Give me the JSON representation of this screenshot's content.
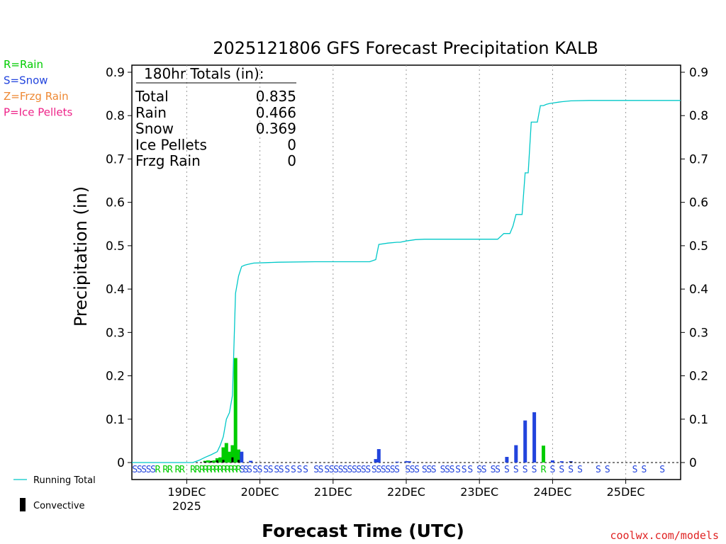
{
  "chart_data": {
    "type": "bar",
    "title": "2025121806 GFS Forecast Precipitation KALB",
    "xlabel": "Forecast Time (UTC)",
    "ylabel": "Precipitation (in)",
    "ylim": [
      0,
      0.92
    ],
    "xlim_hours": [
      0,
      180
    ],
    "y_ticks": [
      "0",
      "0.1",
      "0.2",
      "0.3",
      "0.4",
      "0.5",
      "0.6",
      "0.7",
      "0.8",
      "0.9"
    ],
    "x_ticks": [
      {
        "hour": 18,
        "label": "19DEC",
        "sub": "2025"
      },
      {
        "hour": 42,
        "label": "20DEC"
      },
      {
        "hour": 66,
        "label": "21DEC"
      },
      {
        "hour": 90,
        "label": "22DEC"
      },
      {
        "hour": 114,
        "label": "23DEC"
      },
      {
        "hour": 138,
        "label": "24DEC"
      },
      {
        "hour": 162,
        "label": "25DEC"
      }
    ],
    "totals": {
      "header": "180hr Totals (in):",
      "rows": [
        {
          "label": "Total",
          "value": "0.835"
        },
        {
          "label": "Rain",
          "value": "0.466"
        },
        {
          "label": "Snow",
          "value": "0.369"
        },
        {
          "label": "Ice Pellets",
          "value": "0"
        },
        {
          "label": "Frzg Rain",
          "value": "0"
        }
      ]
    },
    "type_legend": [
      {
        "label": "R=Rain",
        "color": "#00cc00"
      },
      {
        "label": "S=Snow",
        "color": "#2244dd"
      },
      {
        "label": "Z=Frzg Rain",
        "color": "#ee8833"
      },
      {
        "label": "P=Ice Pellets",
        "color": "#ee2288"
      }
    ],
    "series_legend": [
      {
        "label": "Running Total",
        "color": "#00c8c8"
      },
      {
        "label": "Convective",
        "color": "#000000"
      }
    ],
    "precip_bars": [
      {
        "hour": 24.0,
        "value": 0.004,
        "type": "rain"
      },
      {
        "hour": 25.0,
        "value": 0.005,
        "type": "rain"
      },
      {
        "hour": 26.0,
        "value": 0.004,
        "type": "rain"
      },
      {
        "hour": 27.0,
        "value": 0.005,
        "type": "rain"
      },
      {
        "hour": 28.0,
        "value": 0.01,
        "type": "rain"
      },
      {
        "hour": 29.0,
        "value": 0.012,
        "type": "rain"
      },
      {
        "hour": 30.0,
        "value": 0.035,
        "type": "rain"
      },
      {
        "hour": 31.0,
        "value": 0.045,
        "type": "rain"
      },
      {
        "hour": 32.0,
        "value": 0.025,
        "type": "rain"
      },
      {
        "hour": 33.0,
        "value": 0.04,
        "type": "rain"
      },
      {
        "hour": 34.0,
        "value": 0.241,
        "type": "rain"
      },
      {
        "hour": 35.0,
        "value": 0.03,
        "type": "rain"
      },
      {
        "hour": 36.0,
        "value": 0.025,
        "type": "snow"
      },
      {
        "hour": 39.0,
        "value": 0.004,
        "type": "snow"
      },
      {
        "hour": 80.0,
        "value": 0.008,
        "type": "snow"
      },
      {
        "hour": 81.0,
        "value": 0.031,
        "type": "snow"
      },
      {
        "hour": 87.0,
        "value": 0.002,
        "type": "snow"
      },
      {
        "hour": 90.0,
        "value": 0.003,
        "type": "snow"
      },
      {
        "hour": 91.0,
        "value": 0.003,
        "type": "snow"
      },
      {
        "hour": 123.0,
        "value": 0.013,
        "type": "snow"
      },
      {
        "hour": 126.0,
        "value": 0.04,
        "type": "snow"
      },
      {
        "hour": 129.0,
        "value": 0.097,
        "type": "snow"
      },
      {
        "hour": 132.0,
        "value": 0.116,
        "type": "snow"
      },
      {
        "hour": 135.0,
        "value": 0.039,
        "type": "rain"
      },
      {
        "hour": 138.0,
        "value": 0.005,
        "type": "snow"
      },
      {
        "hour": 141.0,
        "value": 0.003,
        "type": "snow"
      },
      {
        "hour": 144.0,
        "value": 0.003,
        "type": "snow"
      }
    ],
    "convective_bars": [
      {
        "hour": 24.0,
        "value": 0.002
      },
      {
        "hour": 26.0,
        "value": 0.003
      },
      {
        "hour": 28.0,
        "value": 0.005
      },
      {
        "hour": 30.0,
        "value": 0.006
      },
      {
        "hour": 33.0,
        "value": 0.012
      },
      {
        "hour": 35.0,
        "value": 0.006
      },
      {
        "hour": 144.0,
        "value": 0.002
      }
    ],
    "running_total": {
      "hours": [
        0,
        20,
        22,
        24,
        26,
        28,
        29,
        30,
        31,
        32,
        33,
        34,
        35,
        36,
        37,
        38,
        40,
        44,
        48,
        60,
        72,
        78,
        80,
        81,
        84,
        87,
        88,
        90,
        93,
        96,
        108,
        120,
        122,
        124,
        125,
        126,
        127,
        128,
        129,
        130,
        131,
        132,
        133,
        134,
        135,
        136,
        137,
        138,
        140,
        141,
        144,
        150,
        160,
        170,
        180
      ],
      "values": [
        0,
        0,
        0.005,
        0.012,
        0.018,
        0.025,
        0.04,
        0.06,
        0.1,
        0.115,
        0.155,
        0.39,
        0.43,
        0.452,
        0.455,
        0.457,
        0.46,
        0.461,
        0.462,
        0.463,
        0.463,
        0.463,
        0.468,
        0.503,
        0.506,
        0.508,
        0.508,
        0.511,
        0.514,
        0.515,
        0.515,
        0.515,
        0.528,
        0.528,
        0.545,
        0.572,
        0.572,
        0.572,
        0.668,
        0.668,
        0.785,
        0.785,
        0.785,
        0.823,
        0.823,
        0.826,
        0.828,
        0.829,
        0.831,
        0.832,
        0.834,
        0.835,
        0.835,
        0.835,
        0.835
      ]
    },
    "type_strip": [
      {
        "hour": 1.0,
        "code": "S"
      },
      {
        "hour": 2.5,
        "code": "S"
      },
      {
        "hour": 4.0,
        "code": "S"
      },
      {
        "hour": 5.5,
        "code": "S"
      },
      {
        "hour": 7.0,
        "code": "S"
      },
      {
        "hour": 8.5,
        "code": "R"
      },
      {
        "hour": 11.0,
        "code": "R"
      },
      {
        "hour": 12.5,
        "code": "R"
      },
      {
        "hour": 15.0,
        "code": "R"
      },
      {
        "hour": 16.5,
        "code": "R"
      },
      {
        "hour": 20.0,
        "code": "R"
      },
      {
        "hour": 21.5,
        "code": "R"
      },
      {
        "hour": 23.0,
        "code": "R"
      },
      {
        "hour": 24.2,
        "code": "R"
      },
      {
        "hour": 25.4,
        "code": "R"
      },
      {
        "hour": 26.6,
        "code": "R"
      },
      {
        "hour": 27.8,
        "code": "R"
      },
      {
        "hour": 29.0,
        "code": "R"
      },
      {
        "hour": 30.2,
        "code": "R"
      },
      {
        "hour": 31.4,
        "code": "R"
      },
      {
        "hour": 32.6,
        "code": "R"
      },
      {
        "hour": 33.8,
        "code": "R"
      },
      {
        "hour": 35.0,
        "code": "R"
      },
      {
        "hour": 36.2,
        "code": "S"
      },
      {
        "hour": 37.4,
        "code": "S"
      },
      {
        "hour": 38.6,
        "code": "S"
      },
      {
        "hour": 40.5,
        "code": "S"
      },
      {
        "hour": 42.0,
        "code": "S"
      },
      {
        "hour": 44.0,
        "code": "S"
      },
      {
        "hour": 45.5,
        "code": "S"
      },
      {
        "hour": 47.5,
        "code": "S"
      },
      {
        "hour": 49.0,
        "code": "S"
      },
      {
        "hour": 51.0,
        "code": "S"
      },
      {
        "hour": 53.0,
        "code": "S"
      },
      {
        "hour": 55.0,
        "code": "S"
      },
      {
        "hour": 57.0,
        "code": "S"
      },
      {
        "hour": 60.5,
        "code": "S"
      },
      {
        "hour": 62.0,
        "code": "S"
      },
      {
        "hour": 64.0,
        "code": "S"
      },
      {
        "hour": 65.5,
        "code": "S"
      },
      {
        "hour": 67.0,
        "code": "S"
      },
      {
        "hour": 68.5,
        "code": "S"
      },
      {
        "hour": 70.0,
        "code": "S"
      },
      {
        "hour": 71.5,
        "code": "S"
      },
      {
        "hour": 73.0,
        "code": "S"
      },
      {
        "hour": 74.5,
        "code": "S"
      },
      {
        "hour": 76.0,
        "code": "S"
      },
      {
        "hour": 77.5,
        "code": "S"
      },
      {
        "hour": 79.5,
        "code": "S"
      },
      {
        "hour": 81.0,
        "code": "S"
      },
      {
        "hour": 82.5,
        "code": "S"
      },
      {
        "hour": 84.0,
        "code": "S"
      },
      {
        "hour": 85.5,
        "code": "S"
      },
      {
        "hour": 87.0,
        "code": "S"
      },
      {
        "hour": 90.5,
        "code": "S"
      },
      {
        "hour": 92.0,
        "code": "S"
      },
      {
        "hour": 93.5,
        "code": "S"
      },
      {
        "hour": 96.0,
        "code": "S"
      },
      {
        "hour": 97.5,
        "code": "S"
      },
      {
        "hour": 99.0,
        "code": "S"
      },
      {
        "hour": 102.0,
        "code": "S"
      },
      {
        "hour": 103.5,
        "code": "S"
      },
      {
        "hour": 105.0,
        "code": "S"
      },
      {
        "hour": 107.0,
        "code": "S"
      },
      {
        "hour": 109.0,
        "code": "S"
      },
      {
        "hour": 111.0,
        "code": "S"
      },
      {
        "hour": 114.0,
        "code": "S"
      },
      {
        "hour": 115.5,
        "code": "S"
      },
      {
        "hour": 118.5,
        "code": "S"
      },
      {
        "hour": 120.0,
        "code": "S"
      },
      {
        "hour": 123.0,
        "code": "S"
      },
      {
        "hour": 126.0,
        "code": "S"
      },
      {
        "hour": 129.0,
        "code": "S"
      },
      {
        "hour": 132.0,
        "code": "S"
      },
      {
        "hour": 135.0,
        "code": "R"
      },
      {
        "hour": 138.0,
        "code": "S"
      },
      {
        "hour": 141.0,
        "code": "S"
      },
      {
        "hour": 144.0,
        "code": "S"
      },
      {
        "hour": 147.0,
        "code": "S"
      },
      {
        "hour": 153.0,
        "code": "S"
      },
      {
        "hour": 156.0,
        "code": "S"
      },
      {
        "hour": 165.0,
        "code": "S"
      },
      {
        "hour": 168.0,
        "code": "S"
      },
      {
        "hour": 174.0,
        "code": "S"
      }
    ]
  },
  "footer": {
    "credit": "coolwx.com/models"
  }
}
